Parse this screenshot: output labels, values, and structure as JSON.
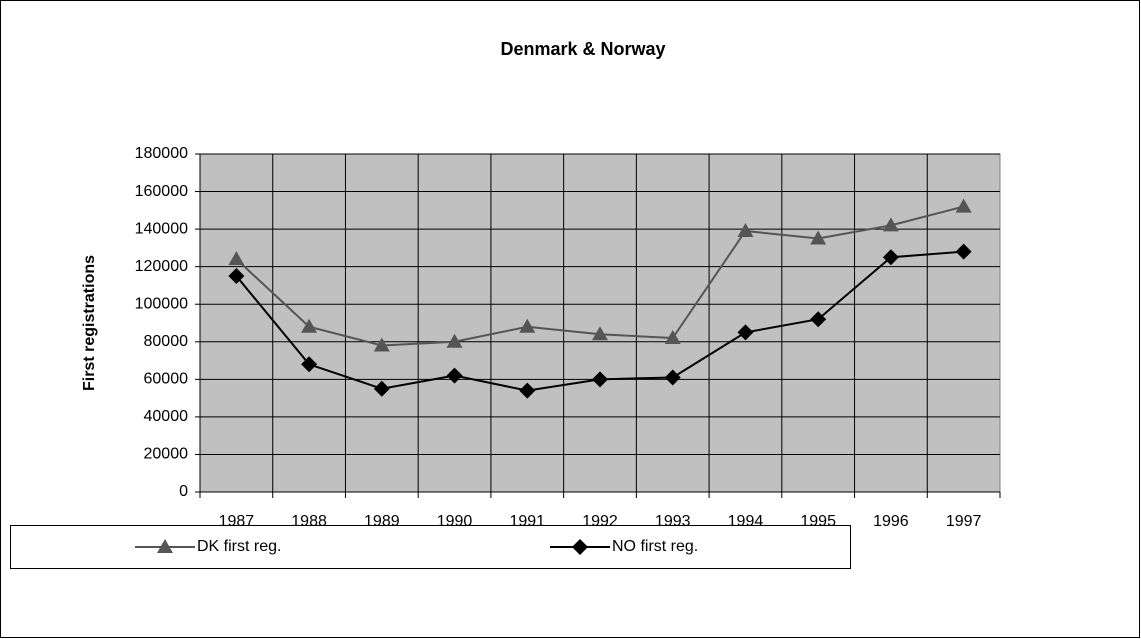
{
  "chart_data": {
    "type": "line",
    "title": "Denmark & Norway",
    "y_label": "First registrations",
    "categories": [
      "1987",
      "1988",
      "1989",
      "1990",
      "1991",
      "1992",
      "1993",
      "1994",
      "1995",
      "1996",
      "1997"
    ],
    "series": [
      {
        "name": "DK first reg.",
        "color": "#555555",
        "marker": "triangle",
        "values": [
          124000,
          88000,
          78000,
          80000,
          88000,
          84000,
          82000,
          139000,
          135000,
          142000,
          152000
        ]
      },
      {
        "name": "NO first reg.",
        "color": "#000000",
        "marker": "diamond",
        "values": [
          115000,
          68000,
          55000,
          62000,
          54000,
          60000,
          61000,
          85000,
          92000,
          125000,
          128000
        ]
      }
    ],
    "ylim": [
      0,
      180000
    ],
    "yticks": [
      0,
      20000,
      40000,
      60000,
      80000,
      100000,
      120000,
      140000,
      160000,
      180000
    ],
    "grid": true,
    "plot_background": "#c0c0c0",
    "legend": "bottom"
  }
}
